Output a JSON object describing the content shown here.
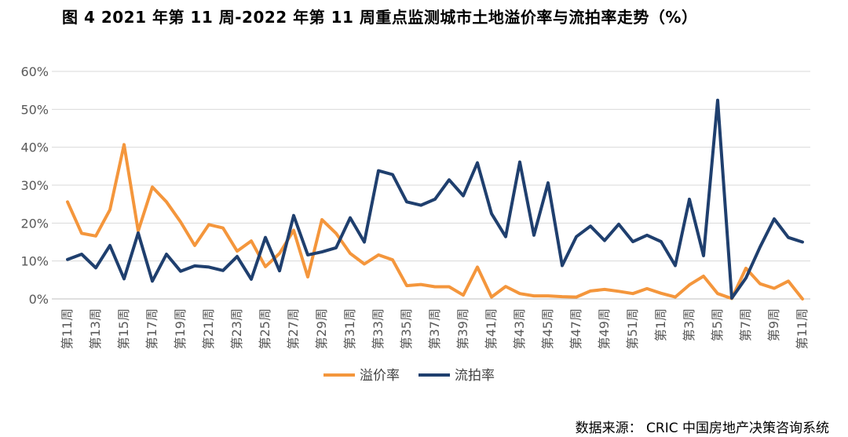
{
  "title": "图 4   2021 年第 11 周-2022 年第 11 周重点监测城市土地溢价率与流拍率走势（%）",
  "source": "数据来源：   CRIC 中国房地产决策咨询系统",
  "chart_data": {
    "type": "line",
    "y_ticks": [
      "0%",
      "10%",
      "20%",
      "30%",
      "40%",
      "50%",
      "60%"
    ],
    "ylim": [
      0,
      60
    ],
    "grid": "horizontal",
    "legend_position": "bottom",
    "x_tick_labels": [
      "第11周",
      "第13周",
      "第15周",
      "第17周",
      "第19周",
      "第21周",
      "第23周",
      "第25周",
      "第27周",
      "第29周",
      "第31周",
      "第33周",
      "第35周",
      "第37周",
      "第39周",
      "第41周",
      "第43周",
      "第45周",
      "第47周",
      "第49周",
      "第51周",
      "第1周",
      "第3周",
      "第5周",
      "第7周",
      "第9周",
      "第11周"
    ],
    "x_count": 53,
    "series": [
      {
        "name": "溢价率",
        "color": "#F4963C",
        "values": [
          25.6,
          17.3,
          16.6,
          23.5,
          40.7,
          17.9,
          29.5,
          25.6,
          20.3,
          14.1,
          19.6,
          18.7,
          12.6,
          15.3,
          8.5,
          12.0,
          18.1,
          5.8,
          20.9,
          17.3,
          12.0,
          9.2,
          11.6,
          10.3,
          3.5,
          3.8,
          3.2,
          3.2,
          1.0,
          8.4,
          0.5,
          3.3,
          1.4,
          0.8,
          0.8,
          0.6,
          0.5,
          2.1,
          2.5,
          2.0,
          1.4,
          2.7,
          1.5,
          0.5,
          3.7,
          6.0,
          1.4,
          0.1,
          8.1,
          4.0,
          2.8,
          4.7,
          0.0
        ]
      },
      {
        "name": "流拍率",
        "color": "#1F3F6E",
        "values": [
          10.4,
          11.8,
          8.2,
          14.1,
          5.3,
          17.4,
          4.7,
          11.8,
          7.3,
          8.7,
          8.4,
          7.5,
          11.2,
          5.2,
          16.2,
          7.4,
          22.0,
          11.6,
          12.4,
          13.5,
          21.4,
          15.0,
          33.8,
          32.8,
          25.6,
          24.7,
          26.3,
          31.4,
          27.2,
          35.9,
          22.5,
          16.4,
          36.1,
          16.8,
          30.6,
          8.8,
          16.4,
          19.2,
          15.4,
          19.7,
          15.1,
          16.8,
          15.1,
          8.8,
          26.3,
          11.4,
          52.4,
          0.2,
          5.5,
          13.7,
          21.1,
          16.2,
          15.0
        ]
      }
    ]
  }
}
